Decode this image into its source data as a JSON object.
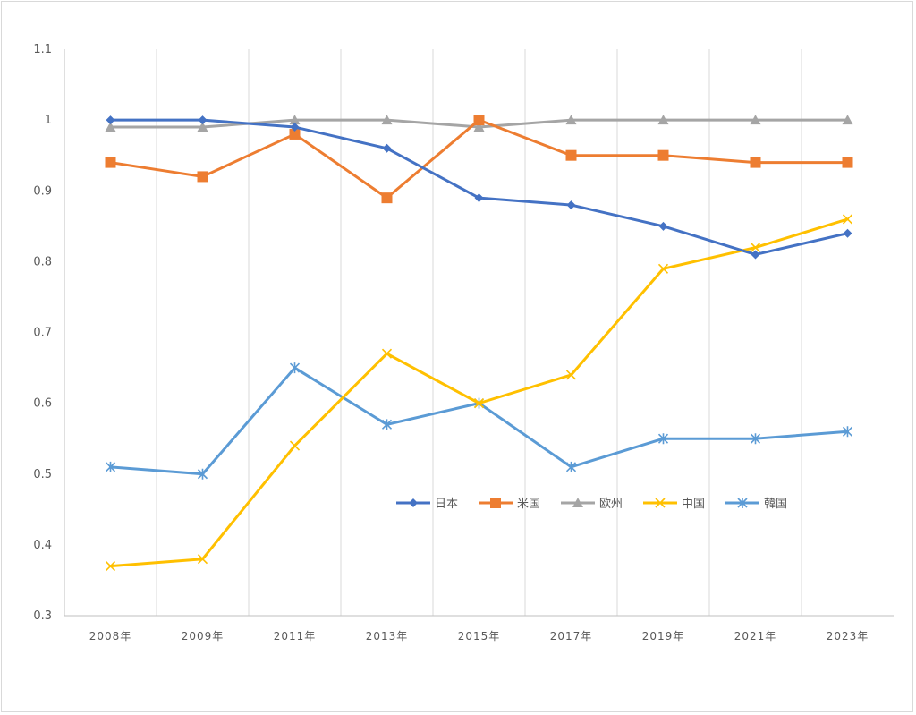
{
  "chart_data": {
    "type": "line",
    "title": "",
    "xlabel": "",
    "ylabel": "",
    "categories": [
      "2008年",
      "2009年",
      "2011年",
      "2013年",
      "2015年",
      "2017年",
      "2019年",
      "2021年",
      "2023年"
    ],
    "ylim": [
      0.3,
      1.1
    ],
    "yticks": [
      "0.3",
      "0.4",
      "0.5",
      "0.6",
      "0.7",
      "0.8",
      "0.9",
      "1",
      "1.1"
    ],
    "grid": "vertical",
    "legend_position": "inside-right",
    "series": [
      {
        "name": "日本",
        "color": "#4472c4",
        "marker": "diamond",
        "values": [
          1.0,
          1.0,
          0.99,
          0.96,
          0.89,
          0.88,
          0.85,
          0.81,
          0.84
        ]
      },
      {
        "name": "米国",
        "color": "#ed7d31",
        "marker": "square",
        "values": [
          0.94,
          0.92,
          0.98,
          0.89,
          1.0,
          0.95,
          0.95,
          0.94,
          0.94
        ]
      },
      {
        "name": "欧州",
        "color": "#a5a5a5",
        "marker": "triangle",
        "values": [
          0.99,
          0.99,
          1.0,
          1.0,
          0.99,
          1.0,
          1.0,
          1.0,
          1.0
        ]
      },
      {
        "name": "中国",
        "color": "#ffc000",
        "marker": "x",
        "values": [
          0.37,
          0.38,
          0.54,
          0.67,
          0.6,
          0.64,
          0.79,
          0.82,
          0.86
        ]
      },
      {
        "name": "韓国",
        "color": "#5b9bd5",
        "marker": "star",
        "values": [
          0.51,
          0.5,
          0.65,
          0.57,
          0.6,
          0.51,
          0.55,
          0.55,
          0.56
        ]
      }
    ]
  }
}
